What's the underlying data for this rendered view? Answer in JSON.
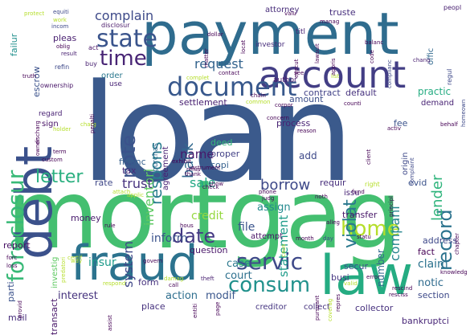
{
  "cloud": {
    "words": [
      {
        "id": "loan",
        "text": "loan",
        "color": "#3b5a8c"
      },
      {
        "id": "mortgag",
        "text": "mortgag",
        "color": "#44bf70"
      },
      {
        "id": "payment",
        "text": "payment",
        "color": "#2f6c8e"
      },
      {
        "id": "debt",
        "text": "debt",
        "color": "#3b518b"
      },
      {
        "id": "fraud",
        "text": "fraud",
        "color": "#2c738e"
      },
      {
        "id": "law",
        "text": "law",
        "color": "#25ac82"
      },
      {
        "id": "account",
        "text": "account",
        "color": "#433e85"
      },
      {
        "id": "document",
        "text": "document",
        "color": "#38588c"
      },
      {
        "id": "foreclosur",
        "text": "foreclosur",
        "color": "#38b977"
      },
      {
        "id": "home",
        "text": "home",
        "color": "#b5de2b"
      },
      {
        "id": "consum",
        "text": "consum",
        "color": "#21918c"
      },
      {
        "id": "servic",
        "text": "servic",
        "color": "#3e4989"
      },
      {
        "id": "state",
        "text": "state",
        "color": "#3a548c"
      },
      {
        "id": "time",
        "text": "time",
        "color": "#482475"
      },
      {
        "id": "letter",
        "text": "letter",
        "color": "#29af7f"
      },
      {
        "id": "date",
        "text": "date",
        "color": "#443983"
      },
      {
        "id": "record",
        "text": "record",
        "color": "#2c738e"
      },
      {
        "id": "violat",
        "text": "violat",
        "color": "#2a788e"
      },
      {
        "id": "respons",
        "text": "respons",
        "color": "#287d8e"
      },
      {
        "id": "note",
        "text": "note",
        "color": "#3b528b"
      },
      {
        "id": "bank",
        "text": "bank",
        "color": "#31688e"
      },
      {
        "id": "complain",
        "text": "complain",
        "color": "#3e4a89"
      },
      {
        "id": "request",
        "text": "request",
        "color": "#33638d"
      },
      {
        "id": "inventori",
        "text": "inventori",
        "color": "#5ec962"
      },
      {
        "id": "compani",
        "text": "compani",
        "color": "#25858e"
      },
      {
        "id": "lender",
        "text": "lender",
        "color": "#2fb47c"
      },
      {
        "id": "borrow",
        "text": "borrow",
        "color": "#3e4989"
      },
      {
        "id": "trust",
        "text": "trust",
        "color": "#46327e"
      },
      {
        "id": "sale",
        "text": "sale",
        "color": "#22a884"
      },
      {
        "id": "name",
        "text": "name",
        "color": "#48186a"
      },
      {
        "id": "statement",
        "text": "statement",
        "color": "#1e9b8a"
      },
      {
        "id": "financ",
        "text": "financ",
        "color": "#355f8d"
      },
      {
        "id": "tax",
        "text": "tax",
        "color": "#472d7b"
      },
      {
        "id": "credit",
        "text": "credit",
        "color": "#95d840"
      },
      {
        "id": "insur",
        "text": "insur",
        "color": "#1e9b8a"
      },
      {
        "id": "inform",
        "text": "inform",
        "color": "#3b528b"
      },
      {
        "id": "system",
        "text": "system",
        "color": "#3f4788"
      },
      {
        "id": "file",
        "text": "file",
        "color": "#3a548c"
      },
      {
        "id": "assign",
        "text": "assign",
        "color": "#23898e"
      },
      {
        "id": "number",
        "text": "number",
        "color": "#31688e"
      },
      {
        "id": "case",
        "text": "case",
        "color": "#2a788e"
      },
      {
        "id": "court",
        "text": "court",
        "color": "#2d708e"
      },
      {
        "id": "claim",
        "text": "claim",
        "color": "#2c728e"
      },
      {
        "id": "notic",
        "text": "notic",
        "color": "#2f6b8e"
      },
      {
        "id": "interest",
        "text": "interest",
        "color": "#46337e"
      },
      {
        "id": "action",
        "text": "action",
        "color": "#2e6e8e"
      },
      {
        "id": "modif",
        "text": "modif",
        "color": "#39568c"
      },
      {
        "id": "settlement",
        "text": "settlement",
        "color": "#482071"
      },
      {
        "id": "amount",
        "text": "amount",
        "color": "#3c4f8a"
      },
      {
        "id": "truste",
        "text": "truste",
        "color": "#472f7d"
      },
      {
        "id": "attorney",
        "text": "attorney",
        "color": "#472c7a"
      },
      {
        "id": "order",
        "text": "order",
        "color": "#2a778e"
      },
      {
        "id": "pleas",
        "text": "pleas",
        "color": "#481f70"
      },
      {
        "id": "escrow",
        "text": "escrow",
        "color": "#3b518b"
      },
      {
        "id": "failur",
        "text": "failur",
        "color": "#21908d"
      },
      {
        "id": "deed",
        "text": "deed",
        "color": "#35b779"
      },
      {
        "id": "proper",
        "text": "proper",
        "color": "#424186"
      },
      {
        "id": "copi",
        "text": "copi",
        "color": "#35608d"
      },
      {
        "id": "add",
        "text": "add",
        "color": "#3e4989"
      },
      {
        "id": "process",
        "text": "process",
        "color": "#482374"
      },
      {
        "id": "contract",
        "text": "contract",
        "color": "#414287"
      },
      {
        "id": "default",
        "text": "default",
        "color": "#46327e"
      },
      {
        "id": "practic",
        "text": "practic",
        "color": "#25ac82"
      },
      {
        "id": "demand",
        "text": "demand",
        "color": "#482374"
      },
      {
        "id": "fee",
        "text": "fee",
        "color": "#3b528b"
      },
      {
        "id": "evid",
        "text": "evid",
        "color": "#3b528b"
      },
      {
        "id": "requir",
        "text": "requir",
        "color": "#472e7c"
      },
      {
        "id": "issu",
        "text": "issu",
        "color": "#482576"
      },
      {
        "id": "transfer",
        "text": "transfer",
        "color": "#481769"
      },
      {
        "id": "secur",
        "text": "secur",
        "color": "#3b528b"
      },
      {
        "id": "busi",
        "text": "busi",
        "color": "#453781"
      },
      {
        "id": "section",
        "text": "section",
        "color": "#3e4a89"
      },
      {
        "id": "collector",
        "text": "collector",
        "color": "#46307e"
      },
      {
        "id": "creditor",
        "text": "creditor",
        "color": "#453581"
      },
      {
        "id": "collect",
        "text": "collect",
        "color": "#46327e"
      },
      {
        "id": "address",
        "text": "address",
        "color": "#3e4989"
      },
      {
        "id": "fact",
        "text": "fact",
        "color": "#440154"
      },
      {
        "id": "bankruptci",
        "text": "bankruptci",
        "color": "#482677"
      },
      {
        "id": "rate",
        "text": "rate",
        "color": "#3f4788"
      },
      {
        "id": "money",
        "text": "money",
        "color": "#481b6d"
      },
      {
        "id": "report",
        "text": "report",
        "color": "#471164"
      },
      {
        "id": "form",
        "text": "form",
        "color": "#46327e"
      },
      {
        "id": "place",
        "text": "place",
        "color": "#46327e"
      },
      {
        "id": "mail",
        "text": "mail",
        "color": "#472d7b"
      },
      {
        "id": "parti",
        "text": "parti",
        "color": "#3b528b"
      },
      {
        "id": "transact",
        "text": "transact",
        "color": "#481769"
      },
      {
        "id": "question",
        "text": "question",
        "color": "#481668"
      },
      {
        "id": "attempt",
        "text": "attempt",
        "color": "#471365"
      },
      {
        "id": "investig",
        "text": "investig",
        "color": "#5ec962"
      },
      {
        "id": "agreement",
        "text": "agreement",
        "color": "#482173"
      },
      {
        "id": "purchas",
        "text": "purchas",
        "color": "#31688e"
      },
      {
        "id": "sign",
        "text": "sign",
        "color": "#481467"
      },
      {
        "id": "regard",
        "text": "regard",
        "color": "#482173"
      },
      {
        "id": "use",
        "text": "use",
        "color": "#482475"
      },
      {
        "id": "author",
        "text": "author",
        "color": "#481769"
      },
      {
        "id": "investor",
        "text": "investor",
        "color": "#472e7c"
      },
      {
        "id": "titl",
        "text": "titl",
        "color": "#482475"
      },
      {
        "id": "offic",
        "text": "offic",
        "color": "#31688e"
      },
      {
        "id": "ownership",
        "text": "ownership",
        "color": "#481668"
      },
      {
        "id": "origin",
        "text": "origin",
        "color": "#3e4989"
      },
      {
        "id": "refin",
        "text": "refin",
        "color": "#3e4989"
      },
      {
        "id": "buy",
        "text": "buy",
        "color": "#482071"
      },
      {
        "id": "act",
        "text": "act",
        "color": "#481467"
      },
      {
        "id": "work",
        "text": "work",
        "color": "#b5de2b"
      },
      {
        "id": "protect",
        "text": "protect",
        "color": "#b5de2b"
      },
      {
        "id": "equiti",
        "text": "equiti",
        "color": "#3e4989"
      },
      {
        "id": "incom",
        "text": "incom",
        "color": "#3e4989"
      },
      {
        "id": "disclosur",
        "text": "disclosur",
        "color": "#481769"
      },
      {
        "id": "oblig",
        "text": "oblig",
        "color": "#440154"
      },
      {
        "id": "result",
        "text": "result",
        "color": "#482071"
      },
      {
        "id": "truth",
        "text": "truth",
        "color": "#440154"
      },
      {
        "id": "valu",
        "text": "valu",
        "color": "#440154"
      },
      {
        "id": "manag",
        "text": "manag",
        "color": "#440154"
      },
      {
        "id": "peopl",
        "text": "peopl",
        "color": "#482071"
      },
      {
        "id": "regul",
        "text": "regul",
        "color": "#3e4989"
      },
      {
        "id": "balanc",
        "text": "balanc",
        "color": "#440154"
      },
      {
        "id": "dollar",
        "text": "dollar",
        "color": "#440154"
      },
      {
        "id": "see",
        "text": "see",
        "color": "#440154"
      },
      {
        "id": "list",
        "text": "list",
        "color": "#b5de2b"
      },
      {
        "id": "complianc",
        "text": "complianc",
        "color": "#3e4989"
      },
      {
        "id": "chang",
        "text": "chang",
        "color": "#482071"
      },
      {
        "id": "homeown",
        "text": "homeown",
        "color": "#3e4989"
      },
      {
        "id": "behalf",
        "text": "behalf",
        "color": "#440154"
      },
      {
        "id": "activ",
        "text": "activ",
        "color": "#440154"
      },
      {
        "id": "principl",
        "text": "principl",
        "color": "#440154"
      },
      {
        "id": "complaint",
        "text": "complaint",
        "color": "#3e4989"
      },
      {
        "id": "judg",
        "text": "judg",
        "color": "#440154"
      },
      {
        "id": "phone",
        "text": "phone",
        "color": "#440154"
      },
      {
        "id": "noth",
        "text": "noth",
        "color": "#440154"
      },
      {
        "id": "alleg",
        "text": "alleg",
        "color": "#440154"
      },
      {
        "id": "statu",
        "text": "statu",
        "color": "#440154"
      },
      {
        "id": "month",
        "text": "month",
        "color": "#440154"
      },
      {
        "id": "day",
        "text": "day",
        "color": "#3e4989"
      },
      {
        "id": "knowledg",
        "text": "knowledg",
        "color": "#440154"
      },
      {
        "id": "rescind",
        "text": "rescind",
        "color": "#440154"
      },
      {
        "id": "rescis",
        "text": "resciss",
        "color": "#440154"
      },
      {
        "id": "repres",
        "text": "repres",
        "color": "#440154"
      },
      {
        "id": "coverag",
        "text": "coverag",
        "color": "#b5de2b"
      },
      {
        "id": "pursuant",
        "text": "pursuant",
        "color": "#440154"
      },
      {
        "id": "valid",
        "text": "valid",
        "color": "#b5de2b"
      },
      {
        "id": "error",
        "text": "error",
        "color": "#440154"
      },
      {
        "id": "page",
        "text": "page",
        "color": "#440154"
      },
      {
        "id": "theft",
        "text": "theft",
        "color": "#482071"
      },
      {
        "id": "call",
        "text": "call",
        "color": "#440154"
      },
      {
        "id": "damag",
        "text": "damag",
        "color": "#b5de2b"
      },
      {
        "id": "govern",
        "text": "govern",
        "color": "#440154"
      },
      {
        "id": "respond",
        "text": "respond",
        "color": "#b5de2b"
      },
      {
        "id": "provid",
        "text": "provid",
        "color": "#440154"
      },
      {
        "id": "assist",
        "text": "assist",
        "color": "#440154"
      },
      {
        "id": "entiti",
        "text": "entiti",
        "color": "#440154"
      },
      {
        "id": "rule",
        "text": "rule",
        "color": "#440154"
      },
      {
        "id": "hous",
        "text": "hous",
        "color": "#440154"
      },
      {
        "id": "caus",
        "text": "caus",
        "color": "#b5de2b"
      },
      {
        "id": "certif",
        "text": "certif",
        "color": "#b5de2b"
      },
      {
        "id": "predatori",
        "text": "predatori",
        "color": "#b5de2b"
      },
      {
        "id": "forc",
        "text": "forc",
        "color": "#440154"
      },
      {
        "id": "loss",
        "text": "loss",
        "color": "#440154"
      },
      {
        "id": "way",
        "text": "way",
        "color": "#b5de2b"
      },
      {
        "id": "applic",
        "text": "applic",
        "color": "#b5de2b"
      },
      {
        "id": "attach",
        "text": "attach",
        "color": "#b5de2b"
      },
      {
        "id": "instrument",
        "text": "instrument",
        "color": "#440154"
      },
      {
        "id": "refus",
        "text": "refus",
        "color": "#440154"
      },
      {
        "id": "thank",
        "text": "thank",
        "color": "#440154"
      },
      {
        "id": "show",
        "text": "show",
        "color": "#440154"
      },
      {
        "id": "check",
        "text": "check",
        "color": "#440154"
      },
      {
        "id": "exhibit",
        "text": "exhibit",
        "color": "#440154"
      },
      {
        "id": "term",
        "text": "term",
        "color": "#440154"
      },
      {
        "id": "custom",
        "text": "custom",
        "color": "#440154"
      },
      {
        "id": "owner",
        "text": "owner",
        "color": "#440154"
      },
      {
        "id": "holder",
        "text": "holder",
        "color": "#b5de2b"
      },
      {
        "id": "charg",
        "text": "charg",
        "color": "#b5de2b"
      },
      {
        "id": "discharg",
        "text": "discharg",
        "color": "#440154"
      },
      {
        "id": "penalti",
        "text": "penalti",
        "color": "#440154"
      },
      {
        "id": "concern",
        "text": "concern",
        "color": "#440154"
      },
      {
        "id": "reason",
        "text": "reason",
        "color": "#440154"
      },
      {
        "id": "corpor",
        "text": "corpor",
        "color": "#440154"
      },
      {
        "id": "chain",
        "text": "chain",
        "color": "#440154"
      },
      {
        "id": "common",
        "text": "common",
        "color": "#b5de2b"
      },
      {
        "id": "counti",
        "text": "counti",
        "color": "#440154"
      },
      {
        "id": "fund",
        "text": "fund",
        "color": "#440154"
      },
      {
        "id": "right",
        "text": "right",
        "color": "#b5de2b"
      },
      {
        "id": "contact",
        "text": "contact",
        "color": "#440154"
      },
      {
        "id": "lawsuit",
        "text": "lawsuit",
        "color": "#440154"
      },
      {
        "id": "appeal",
        "text": "appeal",
        "color": "#440154"
      },
      {
        "id": "appris",
        "text": "appris",
        "color": "#440154"
      },
      {
        "id": "execut",
        "text": "execut",
        "color": "#440154"
      },
      {
        "id": "locat",
        "text": "locat",
        "color": "#440154"
      },
      {
        "id": "matter",
        "text": "matter",
        "color": "#440154"
      },
      {
        "id": "code",
        "text": "code",
        "color": "#440154"
      },
      {
        "id": "chapter",
        "text": "chapter",
        "color": "#440154"
      },
      {
        "id": "regist",
        "text": "regist",
        "color": "#440154"
      },
      {
        "id": "client",
        "text": "client",
        "color": "#440154"
      },
      {
        "id": "compli",
        "text": "complet",
        "color": "#b5de2b"
      }
    ]
  }
}
